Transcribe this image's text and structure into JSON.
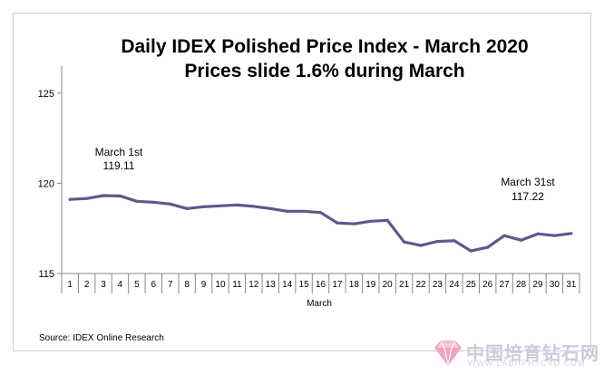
{
  "chart_data": {
    "type": "line",
    "title": "Daily IDEX Polished Price Index - March 2020",
    "subtitle": "Prices slide 1.6% during March",
    "xlabel": "March",
    "ylabel": "",
    "categories": [
      "1",
      "2",
      "3",
      "4",
      "5",
      "6",
      "7",
      "8",
      "9",
      "10",
      "11",
      "12",
      "13",
      "14",
      "15",
      "16",
      "17",
      "18",
      "19",
      "20",
      "21",
      "22",
      "23",
      "24",
      "25",
      "26",
      "27",
      "28",
      "29",
      "30",
      "31"
    ],
    "series": [
      {
        "values": [
          119.11,
          119.16,
          119.32,
          119.3,
          119.0,
          118.95,
          118.85,
          118.6,
          118.7,
          118.75,
          118.8,
          118.72,
          118.6,
          118.45,
          118.45,
          118.38,
          117.8,
          117.75,
          117.9,
          117.95,
          116.75,
          116.55,
          116.78,
          116.82,
          116.25,
          116.45,
          117.1,
          116.85,
          117.2,
          117.1,
          117.22
        ],
        "color": "#5a5a8c"
      }
    ],
    "ylim": [
      115,
      126.5
    ],
    "yticks": [
      115,
      120,
      125
    ],
    "grid": false,
    "legend": "none",
    "annotations": [
      {
        "label": "March 1st",
        "value": "119.11",
        "x": "1"
      },
      {
        "label": "March 31st",
        "value": "117.22",
        "x": "31"
      }
    ]
  },
  "source": "Source: IDEX Online Research",
  "watermark": {
    "text": "中国培育钻石网",
    "url": "WWW.LABHPHTCVD.COM"
  }
}
